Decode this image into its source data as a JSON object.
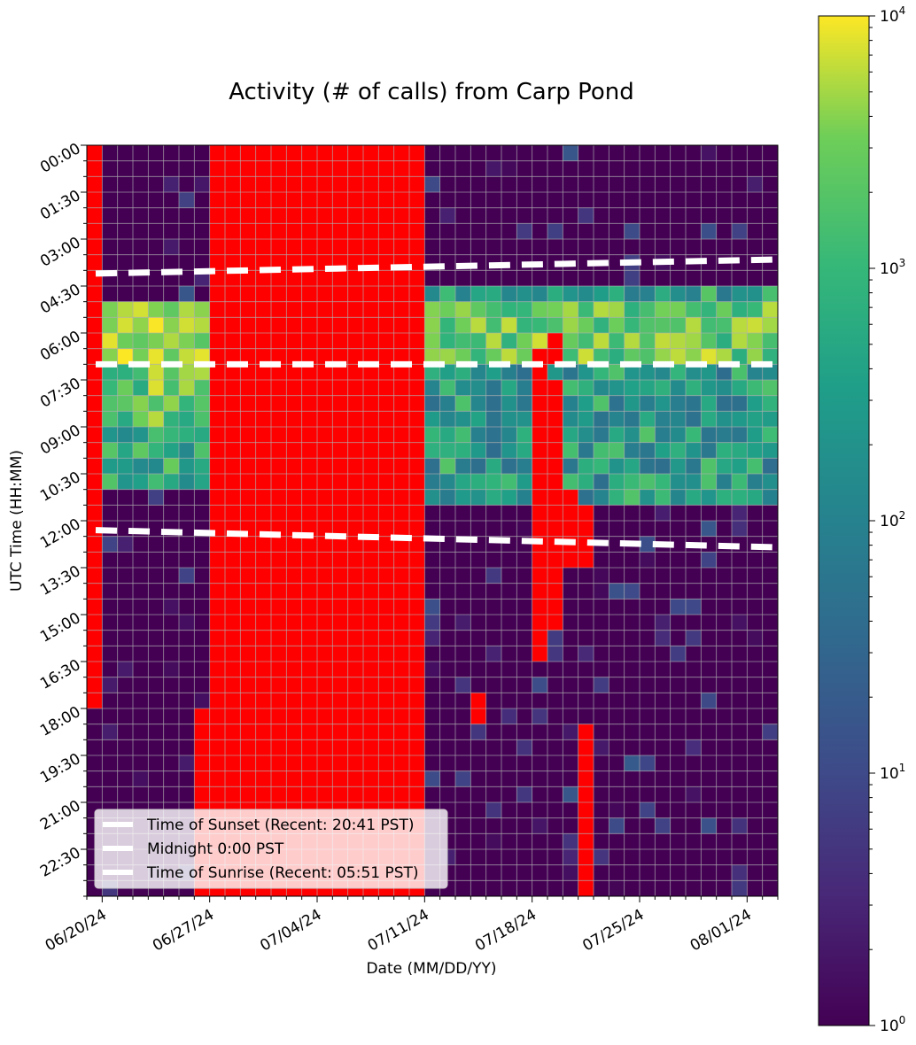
{
  "chart_data": {
    "type": "heatmap",
    "title": "Activity (# of calls) from Carp Pond",
    "xlabel": "Date (MM/DD/YY)",
    "ylabel": "UTC Time (HH:MM)",
    "x_tick_labels": [
      "06/20/24",
      "06/27/24",
      "07/04/24",
      "07/11/24",
      "07/18/24",
      "07/25/24",
      "08/01/24"
    ],
    "y_tick_labels": [
      "00:00",
      "01:30",
      "03:00",
      "04:30",
      "06:00",
      "07:30",
      "09:00",
      "10:30",
      "12:00",
      "13:30",
      "15:00",
      "16:30",
      "18:00",
      "19:30",
      "21:00",
      "22:30"
    ],
    "date_range": [
      "06/19/24",
      "08/02/24"
    ],
    "rows_per_day": 48,
    "bin_minutes": 30,
    "colorbar": {
      "scale": "log",
      "min": 1,
      "max": 10000,
      "colormap": "viridis",
      "tick_labels": [
        "10^0",
        "10^1",
        "10^2",
        "10^3",
        "10^4"
      ]
    },
    "no_data_color": "#ff0000",
    "grid": true,
    "legend": {
      "placement": "lower-left",
      "entries": [
        "Time of Sunset (Recent: 20:41 PST)",
        "Midnight 0:00 PST",
        "Time of Sunrise (Recent: 05:51 PST)"
      ]
    },
    "reference_lines": [
      {
        "name": "Time of Sunset (Recent: 20:41 PST)",
        "start_hour_utc": 4.1,
        "end_hour_utc": 3.65
      },
      {
        "name": "Midnight 0:00 PST",
        "start_hour_utc": 7.0,
        "end_hour_utc": 7.0
      },
      {
        "name": "Time of Sunrise (Recent: 05:51 PST)",
        "start_hour_utc": 12.3,
        "end_hour_utc": 12.85
      }
    ],
    "no_data_ranges": [
      {
        "from_day": 0,
        "to_day": 0,
        "from_hour": 0,
        "to_hour": 18
      },
      {
        "from_day": 7,
        "to_day": 21,
        "from_hour": 18,
        "to_hour": 24
      },
      {
        "from_day": 8,
        "to_day": 21,
        "from_hour": 0,
        "to_hour": 18
      },
      {
        "from_day": 29,
        "to_day": 29,
        "from_hour": 6.5,
        "to_hour": 16.5
      },
      {
        "from_day": 30,
        "to_day": 30,
        "from_hour": 7.5,
        "to_hour": 15.5
      },
      {
        "from_day": 30,
        "to_day": 30,
        "from_hour": 6.0,
        "to_hour": 7.0
      },
      {
        "from_day": 31,
        "to_day": 31,
        "from_hour": 11.0,
        "to_hour": 13.5
      },
      {
        "from_day": 32,
        "to_day": 32,
        "from_hour": 11.5,
        "to_hour": 13.5
      },
      {
        "from_day": 32,
        "to_day": 32,
        "from_hour": 18.5,
        "to_hour": 24
      },
      {
        "from_day": 25,
        "to_day": 25,
        "from_hour": 17.5,
        "to_hour": 18.5
      }
    ]
  }
}
